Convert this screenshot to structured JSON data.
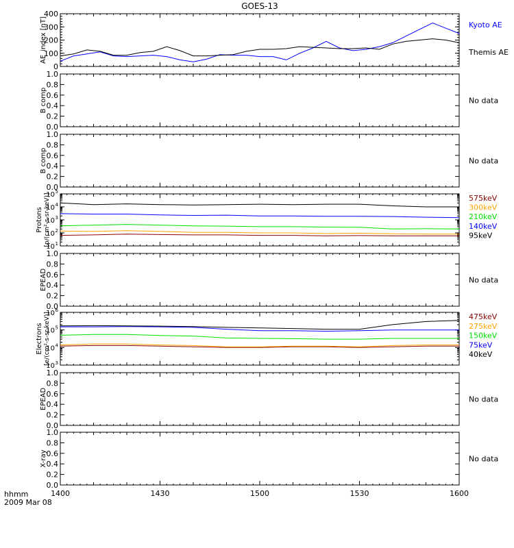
{
  "title": "GOES-13",
  "x_axis": {
    "tick_labels": [
      "1400",
      "1430",
      "1500",
      "1530",
      "1600"
    ],
    "ticks_hhmm": [
      1400,
      1430,
      1500,
      1530,
      1600
    ],
    "range_minutes": [
      0,
      120
    ],
    "label_line1": "hhmm",
    "label_line2": "2009 Mar 08"
  },
  "chart_data": [
    {
      "type": "line",
      "panel": "ae",
      "ylabel": "AE_index [nT]",
      "ylim": [
        0,
        400
      ],
      "yticks": [
        0,
        100,
        200,
        300,
        400
      ],
      "x_minutes": [
        0,
        4,
        8,
        12,
        16,
        20,
        24,
        28,
        32,
        36,
        40,
        44,
        48,
        52,
        56,
        60,
        64,
        68,
        72,
        76,
        80,
        84,
        88,
        92,
        96,
        100,
        104,
        108,
        112,
        116,
        120
      ],
      "series": [
        {
          "name": "Kyoto AE",
          "color": "#0000ff",
          "values": [
            40,
            80,
            95,
            110,
            80,
            75,
            80,
            85,
            75,
            50,
            35,
            55,
            90,
            85,
            85,
            75,
            75,
            50,
            100,
            140,
            190,
            140,
            120,
            130,
            150,
            180,
            230,
            280,
            330,
            290,
            250
          ]
        },
        {
          "name": "Themis AE",
          "color": "#000000",
          "values": [
            80,
            95,
            125,
            115,
            85,
            85,
            105,
            115,
            150,
            120,
            80,
            80,
            85,
            90,
            115,
            130,
            130,
            135,
            150,
            145,
            140,
            135,
            135,
            140,
            130,
            170,
            190,
            200,
            210,
            200,
            180
          ]
        }
      ]
    },
    {
      "type": "line",
      "panel": "empty",
      "ylabel": "B comp",
      "ylim": [
        0,
        1
      ],
      "yticks": [
        0,
        0.2,
        0.4,
        0.6,
        0.8,
        1.0
      ],
      "ytick_labels": [
        "0.0",
        "0.2",
        "0.4",
        "0.6",
        "0.8",
        "1.0"
      ],
      "note": "No data"
    },
    {
      "type": "line",
      "panel": "empty",
      "ylabel": "B comp",
      "ylim": [
        0,
        1
      ],
      "yticks": [
        0,
        0.2,
        0.4,
        0.6,
        0.8,
        1.0
      ],
      "ytick_labels": [
        "0.0",
        "0.2",
        "0.4",
        "0.6",
        "0.8",
        "1.0"
      ],
      "note": "No data"
    },
    {
      "type": "line",
      "panel": "log",
      "ylabel_line1": "Protons",
      "ylabel_line2": "[p/(cm²-s-sr-keV)]",
      "ylim_log10": [
        1,
        5
      ],
      "ytick_base": "10",
      "ytick_exponents": [
        1,
        2,
        3,
        4,
        5
      ],
      "x_minutes": [
        0,
        10,
        20,
        30,
        40,
        50,
        60,
        70,
        80,
        90,
        100,
        110,
        120
      ],
      "series": [
        {
          "name": "575keV",
          "color": "#8b0000",
          "values": [
            65,
            70,
            80,
            75,
            70,
            70,
            65,
            65,
            60,
            62,
            60,
            60,
            60
          ]
        },
        {
          "name": "300keV",
          "color": "#ffa500",
          "values": [
            140,
            130,
            150,
            130,
            110,
            110,
            100,
            100,
            90,
            95,
            85,
            80,
            80
          ]
        },
        {
          "name": "210keV",
          "color": "#00dd00",
          "values": [
            350,
            400,
            450,
            400,
            350,
            330,
            300,
            300,
            280,
            270,
            200,
            210,
            200
          ]
        },
        {
          "name": "140keV",
          "color": "#0000ff",
          "values": [
            3000,
            2800,
            2800,
            2400,
            2200,
            2300,
            2000,
            2000,
            1900,
            1900,
            1800,
            1600,
            1500
          ]
        },
        {
          "name": "95keV",
          "color": "#000000",
          "values": [
            20000,
            15000,
            17000,
            15000,
            14000,
            15000,
            16000,
            15000,
            16000,
            16000,
            12000,
            10000,
            10000
          ]
        }
      ]
    },
    {
      "type": "line",
      "panel": "empty",
      "ylabel": "EPEAD",
      "ylim": [
        0,
        1
      ],
      "yticks": [
        0,
        0.2,
        0.4,
        0.6,
        0.8,
        1.0
      ],
      "ytick_labels": [
        "0.0",
        "0.2",
        "0.4",
        "0.6",
        "0.8",
        "1.0"
      ],
      "note": "No data"
    },
    {
      "type": "line",
      "panel": "log",
      "ylabel_line1": "Electrons",
      "ylabel_line2": "[e/(cm²-s-sr-keV)]",
      "ylim_log10": [
        3,
        6
      ],
      "ytick_base": "10",
      "ytick_exponents": [
        3,
        4,
        5,
        6
      ],
      "x_minutes": [
        0,
        10,
        20,
        30,
        40,
        50,
        60,
        70,
        80,
        90,
        100,
        110,
        120
      ],
      "series": [
        {
          "name": "475keV",
          "color": "#8b0000",
          "values": [
            12000,
            13000,
            13000,
            12000,
            11000,
            10000,
            10000,
            11000,
            11000,
            10000,
            11000,
            12000,
            12000
          ]
        },
        {
          "name": "275keV",
          "color": "#ffa500",
          "values": [
            14000,
            16000,
            16000,
            14000,
            13000,
            11000,
            11000,
            12000,
            12000,
            11000,
            13000,
            14000,
            14000
          ]
        },
        {
          "name": "150keV",
          "color": "#00dd00",
          "values": [
            50000,
            55000,
            55000,
            48000,
            45000,
            35000,
            33000,
            32000,
            30000,
            30000,
            33000,
            33000,
            33000
          ]
        },
        {
          "name": "75keV",
          "color": "#0000ff",
          "values": [
            150000,
            150000,
            155000,
            150000,
            140000,
            110000,
            90000,
            90000,
            85000,
            90000,
            100000,
            100000,
            100000
          ]
        },
        {
          "name": "40keV",
          "color": "#000000",
          "values": [
            170000,
            175000,
            170000,
            165000,
            155000,
            140000,
            130000,
            120000,
            110000,
            110000,
            200000,
            300000,
            350000
          ]
        }
      ]
    },
    {
      "type": "line",
      "panel": "empty",
      "ylabel": "EPEAD",
      "ylim": [
        0,
        1
      ],
      "yticks": [
        0,
        0.2,
        0.4,
        0.6,
        0.8,
        1.0
      ],
      "ytick_labels": [
        "0.0",
        "0.2",
        "0.4",
        "0.6",
        "0.8",
        "1.0"
      ],
      "note": "No data"
    },
    {
      "type": "line",
      "panel": "empty",
      "ylabel": "X-ray",
      "ylim": [
        0,
        1
      ],
      "yticks": [
        0,
        0.2,
        0.4,
        0.6,
        0.8,
        1.0
      ],
      "ytick_labels": [
        "0.0",
        "0.2",
        "0.4",
        "0.6",
        "0.8",
        "1.0"
      ],
      "note": "No data"
    }
  ]
}
